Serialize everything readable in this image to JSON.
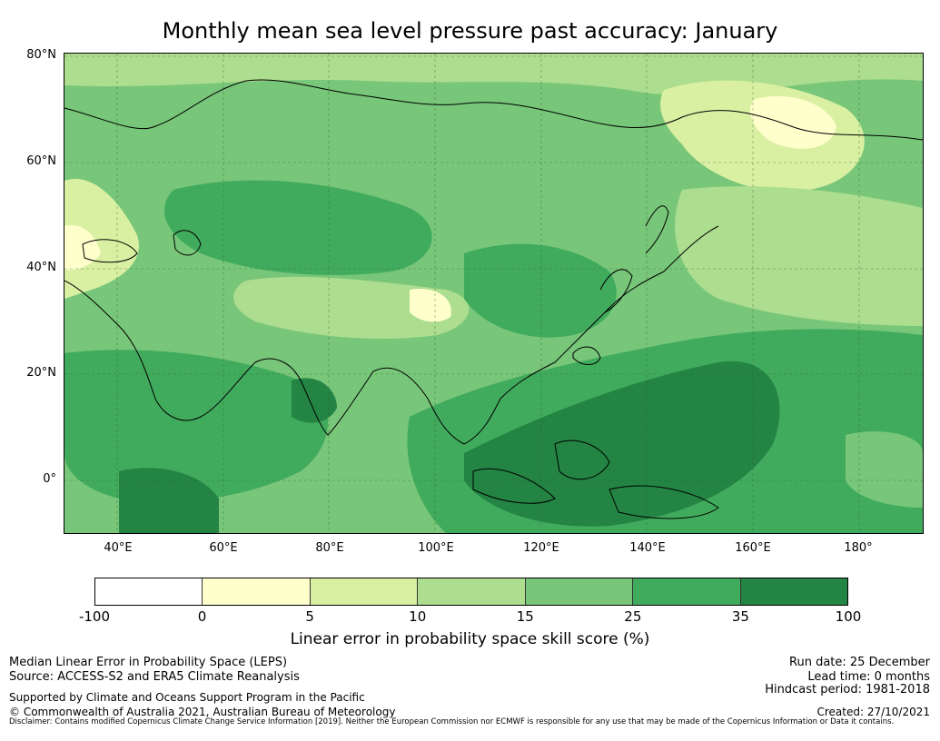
{
  "title": "Monthly mean sea level pressure past accuracy: January",
  "map": {
    "lat_labels": [
      "80°N",
      "60°N",
      "40°N",
      "20°N",
      "0°"
    ],
    "lon_labels": [
      "40°E",
      "60°E",
      "80°E",
      "100°E",
      "120°E",
      "140°E",
      "160°E",
      "180°"
    ],
    "extent": {
      "lon_min": 30,
      "lon_max": 192,
      "lat_min": -10,
      "lat_max": 80
    }
  },
  "colorbar": {
    "tick_labels": [
      "-100",
      "0",
      "5",
      "10",
      "15",
      "25",
      "35",
      "100"
    ],
    "colors": [
      "#ffffff",
      "#ffffcc",
      "#d9f0a3",
      "#addd8e",
      "#78c679",
      "#41ab5d",
      "#238443"
    ],
    "label": "Linear error in probability space skill score (%)"
  },
  "footer": {
    "left_line1": "Median Linear Error in Probability Space (LEPS)",
    "left_line2": "Source: ACCESS-S2 and ERA5 Climate Reanalysis",
    "support": "Supported by Climate and Oceans Support Program in the Pacific",
    "copyright": "© Commonwealth of Australia 2021, Australian Bureau of Meteorology",
    "run_date": "Run date: 25 December",
    "lead_time": "Lead time: 0 months",
    "hindcast": "Hindcast period: 1981-2018",
    "created": "Created: 27/10/2021",
    "disclaimer": "Disclaimer: Contains modified Copernicus Climate Change Service Information [2019]. Neither the European Commission nor ECMWF is responsible for any use that may be made of the Copernicus Information or Data it contains."
  }
}
